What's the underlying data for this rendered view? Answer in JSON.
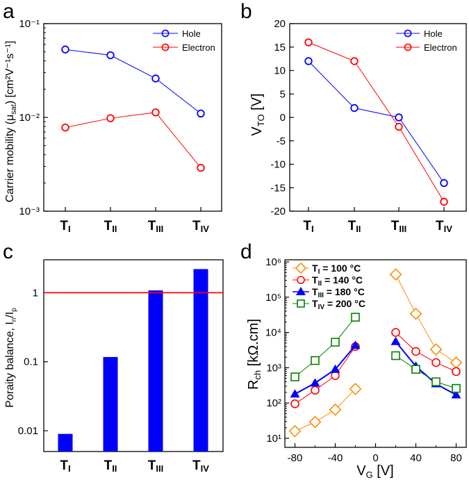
{
  "chart_data": [
    {
      "panel": "a",
      "type": "line",
      "scale": "log",
      "categories": [
        "TI",
        "TII",
        "TIII",
        "TIV"
      ],
      "ylabel": "Carrier mobility (μsat) [cm²V⁻¹s⁻¹]",
      "ylim": [
        0.001,
        0.1
      ],
      "yticks": [
        "10⁻¹",
        "10⁻²",
        "10⁻³"
      ],
      "legend_position": "top-right",
      "series": [
        {
          "name": "Hole",
          "color": "#0000ff",
          "values": [
            0.053,
            0.046,
            0.026,
            0.011
          ]
        },
        {
          "name": "Electron",
          "color": "#ff0000",
          "values": [
            0.0078,
            0.0098,
            0.0113,
            0.0029
          ]
        }
      ]
    },
    {
      "panel": "b",
      "type": "line",
      "categories": [
        "TI",
        "TII",
        "TIII",
        "TIV"
      ],
      "ylabel": "VTO [V]",
      "ylim": [
        -20,
        20
      ],
      "yticks": [
        20,
        15,
        10,
        5,
        0,
        -5,
        -10,
        -15,
        -20
      ],
      "legend_position": "top-right",
      "series": [
        {
          "name": "Hole",
          "color": "#0000ff",
          "values": [
            12,
            2,
            0,
            -14
          ]
        },
        {
          "name": "Electron",
          "color": "#ff0000",
          "values": [
            16,
            12,
            -2,
            -18
          ]
        }
      ]
    },
    {
      "panel": "c",
      "type": "bar",
      "scale": "log",
      "categories": [
        "TI",
        "TII",
        "TIII",
        "TIV"
      ],
      "ylabel": "Poraity balance, In/Ip",
      "ylim": [
        0.005,
        3
      ],
      "yticks": [
        "1",
        "0.1",
        "0.01"
      ],
      "values": [
        0.009,
        0.117,
        1.08,
        2.2
      ],
      "bar_color": "#0000ff",
      "reference_line": {
        "value": 1,
        "color": "#ff0000"
      }
    },
    {
      "panel": "d",
      "type": "scatter",
      "scale": "log",
      "xlabel": "VG [V]",
      "ylabel": "Rch [kΩ.cm]",
      "xlim": [
        -90,
        90
      ],
      "ylim": [
        10,
        1000000
      ],
      "xticks": [
        "-80",
        "-40",
        "0",
        "40",
        "80"
      ],
      "yticks": [
        "10⁶",
        "10⁵",
        "10⁴",
        "10³",
        "10²",
        "10¹"
      ],
      "legend_position": "top-left",
      "series": [
        {
          "name": "TI = 100 °C",
          "color": "#ff8c00",
          "marker": "diamond",
          "x": [
            -80,
            -60,
            -40,
            -20,
            20,
            40,
            60,
            80
          ],
          "y": [
            16,
            29,
            65,
            250,
            440000,
            34000,
            3300,
            1400
          ]
        },
        {
          "name": "TII = 140 °C",
          "color": "#ff0000",
          "marker": "circle",
          "x": [
            -80,
            -60,
            -40,
            -20,
            20,
            40,
            60,
            80
          ],
          "y": [
            95,
            230,
            600,
            4000,
            10000,
            2900,
            1400,
            780
          ]
        },
        {
          "name": "TIII = 180 °C",
          "color": "#0000ff",
          "marker": "triangle",
          "x": [
            -80,
            -60,
            -40,
            -20,
            20,
            40,
            60,
            80
          ],
          "y": [
            180,
            370,
            900,
            4300,
            5500,
            1100,
            350,
            170
          ]
        },
        {
          "name": "TIV = 200 °C",
          "color": "#008000",
          "marker": "square",
          "x": [
            -80,
            -60,
            -40,
            -20,
            20,
            40,
            60,
            80
          ],
          "y": [
            550,
            1600,
            5300,
            27000,
            2200,
            900,
            400,
            260
          ]
        }
      ]
    }
  ],
  "labels": {
    "panel_a": "a",
    "panel_b": "b",
    "panel_c": "c",
    "panel_d": "d",
    "cat_base": [
      "T",
      "T",
      "T",
      "T"
    ],
    "cat_sub": [
      "I",
      "II",
      "III",
      "IV"
    ],
    "a_ylabel_main": "Carrier mobility (μ",
    "a_ylabel_sub": "sat",
    "a_ylabel_unit": ") [cm²V⁻¹s⁻¹]",
    "b_ylabel_main": "V",
    "b_ylabel_sub": "TO",
    "b_ylabel_unit": " [V]",
    "c_ylabel_main": "Poraity balance, I",
    "c_ylabel_sub1": "n",
    "c_ylabel_mid": "/I",
    "c_ylabel_sub2": "p",
    "d_ylabel_main": "R",
    "d_ylabel_sub": "ch",
    "d_ylabel_unit": " [kΩ.cm]",
    "d_xlabel_main": "V",
    "d_xlabel_sub": "G",
    "d_xlabel_unit": " [V]",
    "legend_hole": "Hole",
    "legend_electron": "Electron",
    "d_legend": [
      {
        "sym": "T",
        "sub": "I",
        "rest": " = 100 °C"
      },
      {
        "sym": "T",
        "sub": "II",
        "rest": " = 140 °C"
      },
      {
        "sym": "T",
        "sub": "III",
        "rest": " = 180 °C"
      },
      {
        "sym": "T",
        "sub": "IV",
        "rest": " = 200 °C"
      }
    ]
  }
}
